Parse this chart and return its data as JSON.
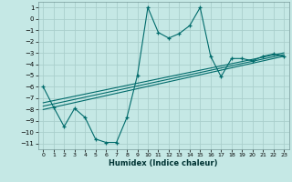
{
  "title": "",
  "xlabel": "Humidex (Indice chaleur)",
  "ylabel": "",
  "bg_color": "#c5e8e5",
  "grid_color": "#aacfcc",
  "line_color": "#006b6b",
  "xlim": [
    -0.5,
    23.5
  ],
  "ylim": [
    -11.5,
    1.5
  ],
  "yticks": [
    1,
    0,
    -1,
    -2,
    -3,
    -4,
    -5,
    -6,
    -7,
    -8,
    -9,
    -10,
    -11
  ],
  "xticks": [
    0,
    1,
    2,
    3,
    4,
    5,
    6,
    7,
    8,
    9,
    10,
    11,
    12,
    13,
    14,
    15,
    16,
    17,
    18,
    19,
    20,
    21,
    22,
    23
  ],
  "main_line_x": [
    0,
    1,
    2,
    3,
    4,
    5,
    6,
    7,
    8,
    9,
    10,
    11,
    12,
    13,
    14,
    15,
    16,
    17,
    18,
    19,
    20,
    21,
    22,
    23
  ],
  "main_line_y": [
    -6.0,
    -7.8,
    -9.5,
    -7.9,
    -8.7,
    -10.6,
    -10.9,
    -10.9,
    -8.7,
    -5.0,
    1.0,
    -1.2,
    -1.7,
    -1.3,
    -0.6,
    1.0,
    -3.3,
    -5.1,
    -3.5,
    -3.5,
    -3.7,
    -3.3,
    -3.1,
    -3.3
  ],
  "reg_line1_x": [
    0,
    23
  ],
  "reg_line1_y": [
    -7.4,
    -3.0
  ],
  "reg_line2_x": [
    0,
    23
  ],
  "reg_line2_y": [
    -7.7,
    -3.15
  ],
  "reg_line3_x": [
    0,
    23
  ],
  "reg_line3_y": [
    -8.0,
    -3.3
  ]
}
